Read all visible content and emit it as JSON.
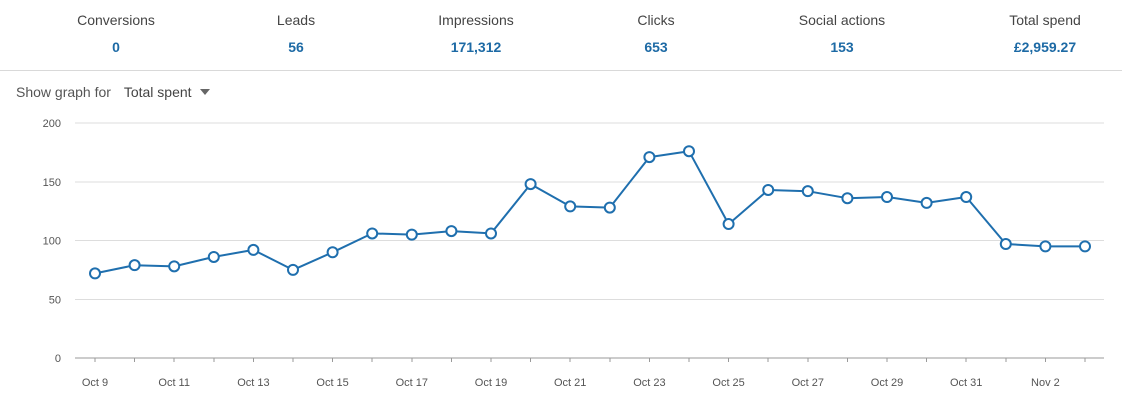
{
  "stats": [
    {
      "label": "Conversions",
      "value": "0"
    },
    {
      "label": "Leads",
      "value": "56"
    },
    {
      "label": "Impressions",
      "value": "171,312"
    },
    {
      "label": "Clicks",
      "value": "653"
    },
    {
      "label": "Social actions",
      "value": "153"
    },
    {
      "label": "Total spend",
      "value": "£2,959.27"
    }
  ],
  "graph_selector": {
    "label": "Show graph for",
    "selected": "Total spent",
    "dropdown_icon": "caret-down-icon"
  },
  "colors": {
    "accent": "#1d6aa5",
    "line": "#1f6fae",
    "gridline": "#dddddd"
  },
  "chart_data": {
    "type": "line",
    "ylim": [
      0,
      200
    ],
    "yticks": [
      0,
      50,
      100,
      150,
      200
    ],
    "grid": true,
    "x": [
      "Oct 9",
      "Oct 10",
      "Oct 11",
      "Oct 12",
      "Oct 13",
      "Oct 14",
      "Oct 15",
      "Oct 16",
      "Oct 17",
      "Oct 18",
      "Oct 19",
      "Oct 20",
      "Oct 21",
      "Oct 22",
      "Oct 23",
      "Oct 24",
      "Oct 25",
      "Oct 26",
      "Oct 27",
      "Oct 28",
      "Oct 29",
      "Oct 30",
      "Oct 31",
      "Nov 1",
      "Nov 2",
      "Nov 3"
    ],
    "xtick_labels": [
      "Oct 9",
      "Oct 11",
      "Oct 13",
      "Oct 15",
      "Oct 17",
      "Oct 19",
      "Oct 21",
      "Oct 23",
      "Oct 25",
      "Oct 27",
      "Oct 29",
      "Oct 31",
      "Nov 2"
    ],
    "series": [
      {
        "values": [
          72,
          79,
          78,
          86,
          92,
          75,
          90,
          106,
          105,
          108,
          106,
          148,
          129,
          128,
          171,
          176,
          114,
          143,
          142,
          136,
          137,
          132,
          137,
          97,
          95,
          95
        ]
      }
    ]
  }
}
